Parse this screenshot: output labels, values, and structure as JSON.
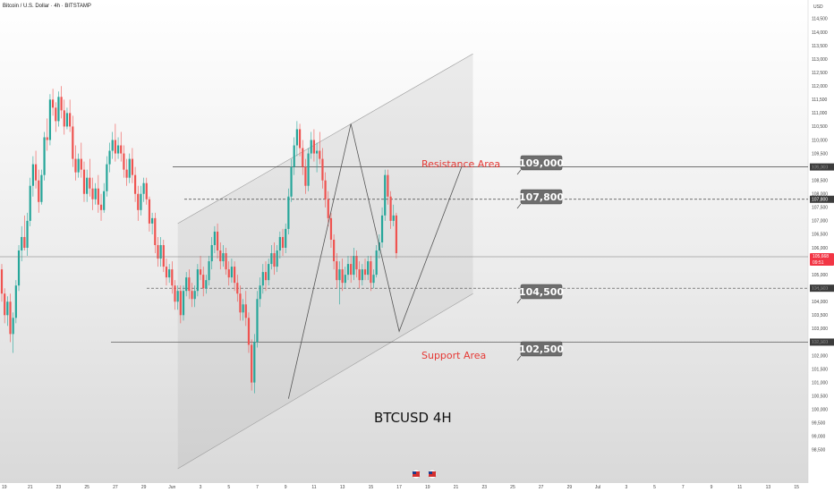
{
  "header": {
    "symbol_title": "Bitcoin / U.S. Dollar · 4h · BITSTAMP",
    "currency": "USD"
  },
  "colors": {
    "up": "#26a69a",
    "down": "#ef5350",
    "level_line": "#444444",
    "label_box": "#6d6d6d",
    "zone_text": "#e53935",
    "price_tag": "#f23645"
  },
  "overlay": {
    "watermark": "BTCUSD 4H",
    "resistance_text": "Resistance Area",
    "support_text": "Support Area"
  },
  "current_price": {
    "value": "105,668",
    "countdown": "09:51"
  },
  "chart_data": {
    "type": "candlestick",
    "y_range": [
      98000,
      114000
    ],
    "y_ticks": [
      "114,500",
      "114,000",
      "113,500",
      "113,000",
      "112,500",
      "112,000",
      "111,500",
      "111,000",
      "110,500",
      "110,000",
      "109,500",
      "109,000",
      "108,500",
      "108,000",
      "107,500",
      "107,000",
      "106,500",
      "106,000",
      "105,500",
      "105,000",
      "104,500",
      "104,000",
      "103,500",
      "103,000",
      "102,500",
      "102,000",
      "101,500",
      "101,000",
      "100,500",
      "100,000",
      "99,500",
      "99,000",
      "98,500"
    ],
    "x_ticks": [
      "19",
      "21",
      "23",
      "25",
      "27",
      "29",
      "Jun",
      "3",
      "5",
      "7",
      "9",
      "11",
      "13",
      "15",
      "17",
      "19",
      "21",
      "23",
      "25",
      "27",
      "29",
      "Jul",
      "3",
      "5",
      "7",
      "9",
      "11",
      "13",
      "15"
    ],
    "levels": [
      {
        "value": 109000,
        "label": "109,000",
        "axis_label": "109,000",
        "style": "solid"
      },
      {
        "value": 107800,
        "label": "107,800",
        "axis_label": "107,800",
        "style": "dashed"
      },
      {
        "value": 104500,
        "label": "104,500",
        "axis_label": "104,500",
        "style": "dashed"
      },
      {
        "value": 102500,
        "label": "102,500",
        "axis_label": "102,500",
        "style": "solid"
      }
    ],
    "channel": {
      "upper": [
        [
          6.2,
          106900
        ],
        [
          16.6,
          113200
        ]
      ],
      "lower": [
        [
          6.2,
          97800
        ],
        [
          16.6,
          104300
        ]
      ]
    },
    "pattern": [
      [
        10.1,
        100400
      ],
      [
        12.3,
        110600
      ],
      [
        14.0,
        102900
      ],
      [
        16.2,
        109000
      ]
    ],
    "candles": [
      [
        -0.5,
        104100,
        104600,
        103900,
        104400
      ],
      [
        -0.3,
        104400,
        104900,
        104200,
        104800
      ],
      [
        -0.2,
        104800,
        105600,
        104600,
        105400
      ],
      [
        -0.1,
        105400,
        105900,
        105000,
        105200
      ],
      [
        0.0,
        105200,
        105400,
        104000,
        104300
      ],
      [
        0.1,
        104300,
        104500,
        103200,
        103500
      ],
      [
        0.2,
        103500,
        104200,
        103100,
        104000
      ],
      [
        0.3,
        104000,
        104300,
        102500,
        102800
      ],
      [
        0.4,
        102800,
        103600,
        102100,
        103400
      ],
      [
        0.5,
        103400,
        104800,
        103200,
        104600
      ],
      [
        0.6,
        104600,
        106100,
        104400,
        105900
      ],
      [
        0.7,
        105900,
        106800,
        105500,
        106400
      ],
      [
        0.8,
        106400,
        107200,
        105900,
        106000
      ],
      [
        0.9,
        106000,
        107300,
        105700,
        107000
      ],
      [
        1.0,
        107000,
        108600,
        106800,
        108300
      ],
      [
        1.1,
        108300,
        109400,
        107900,
        109100
      ],
      [
        1.2,
        109100,
        109600,
        108200,
        108500
      ],
      [
        1.3,
        108500,
        108900,
        107300,
        107700
      ],
      [
        1.4,
        107700,
        108900,
        107600,
        108700
      ],
      [
        1.5,
        108700,
        110300,
        108500,
        110100
      ],
      [
        1.6,
        110100,
        110800,
        109600,
        110000
      ],
      [
        1.7,
        110000,
        111700,
        109800,
        111500
      ],
      [
        1.8,
        111500,
        111900,
        110900,
        111200
      ],
      [
        1.9,
        111200,
        111400,
        110300,
        110700
      ],
      [
        2.0,
        110700,
        111800,
        110500,
        111600
      ],
      [
        2.1,
        111600,
        112000,
        110800,
        111100
      ],
      [
        2.2,
        111100,
        111500,
        110200,
        110500
      ],
      [
        2.3,
        110500,
        111200,
        110400,
        111000
      ],
      [
        2.4,
        111000,
        111500,
        110300,
        110500
      ],
      [
        2.5,
        110500,
        110900,
        109000,
        109300
      ],
      [
        2.6,
        109300,
        109800,
        108500,
        108800
      ],
      [
        2.7,
        108800,
        109500,
        108600,
        109300
      ],
      [
        2.8,
        109300,
        109900,
        108600,
        108900
      ],
      [
        2.9,
        108900,
        109200,
        107700,
        108000
      ],
      [
        3.0,
        108000,
        108900,
        107700,
        108600
      ],
      [
        3.1,
        108600,
        109300,
        107900,
        108200
      ],
      [
        3.2,
        108200,
        108600,
        107400,
        107800
      ],
      [
        3.3,
        107800,
        108400,
        107600,
        108200
      ],
      [
        3.4,
        108200,
        108700,
        107300,
        107600
      ],
      [
        3.5,
        107600,
        108000,
        107000,
        107400
      ],
      [
        3.6,
        107400,
        108400,
        107300,
        108100
      ],
      [
        3.7,
        108100,
        109400,
        107900,
        109100
      ],
      [
        3.8,
        109100,
        109900,
        108800,
        109600
      ],
      [
        3.9,
        109600,
        110300,
        109300,
        110000
      ],
      [
        4.0,
        110000,
        110600,
        109200,
        109500
      ],
      [
        4.1,
        109500,
        110100,
        109300,
        109800
      ],
      [
        4.2,
        109800,
        110300,
        109200,
        109500
      ],
      [
        4.3,
        109500,
        109800,
        108600,
        108900
      ],
      [
        4.4,
        108900,
        109300,
        108300,
        108600
      ],
      [
        4.5,
        108600,
        109500,
        108400,
        109300
      ],
      [
        4.6,
        109300,
        109700,
        108400,
        108700
      ],
      [
        4.7,
        108700,
        109000,
        107700,
        108000
      ],
      [
        4.8,
        108000,
        108300,
        107000,
        107400
      ],
      [
        4.9,
        107400,
        108300,
        107200,
        108000
      ],
      [
        5.0,
        108000,
        108600,
        107700,
        108400
      ],
      [
        5.1,
        108400,
        108600,
        107600,
        107800
      ],
      [
        5.2,
        107800,
        107900,
        106600,
        106900
      ],
      [
        5.3,
        106900,
        107300,
        106500,
        107100
      ],
      [
        5.4,
        107100,
        107300,
        105800,
        106100
      ],
      [
        5.5,
        106100,
        106400,
        105300,
        105600
      ],
      [
        5.6,
        105600,
        106400,
        105300,
        106100
      ],
      [
        5.7,
        106100,
        106300,
        105100,
        105300
      ],
      [
        5.8,
        105300,
        105600,
        104600,
        104900
      ],
      [
        5.9,
        104900,
        105400,
        104700,
        105200
      ],
      [
        6.0,
        105200,
        105500,
        104300,
        104600
      ],
      [
        6.1,
        104600,
        104800,
        103700,
        104000
      ],
      [
        6.2,
        104000,
        104600,
        103700,
        104400
      ],
      [
        6.3,
        104400,
        104600,
        103200,
        103500
      ],
      [
        6.4,
        103500,
        104600,
        103300,
        104400
      ],
      [
        6.5,
        104400,
        105100,
        104200,
        104900
      ],
      [
        6.6,
        104900,
        105200,
        104100,
        104400
      ],
      [
        6.7,
        104400,
        104700,
        103800,
        104100
      ],
      [
        6.8,
        104100,
        104600,
        103800,
        104400
      ],
      [
        6.9,
        104400,
        105400,
        104200,
        105200
      ],
      [
        7.0,
        105200,
        105700,
        104800,
        105000
      ],
      [
        7.1,
        105000,
        105300,
        104200,
        104500
      ],
      [
        7.2,
        104500,
        105000,
        104300,
        104800
      ],
      [
        7.3,
        104800,
        105700,
        104600,
        105500
      ],
      [
        7.4,
        105500,
        106400,
        105200,
        106100
      ],
      [
        7.5,
        106100,
        106800,
        105800,
        106600
      ],
      [
        7.6,
        106600,
        106900,
        105600,
        105900
      ],
      [
        7.7,
        105900,
        106200,
        105200,
        105500
      ],
      [
        7.8,
        105500,
        106100,
        105300,
        105800
      ],
      [
        7.9,
        105800,
        106000,
        105000,
        105200
      ],
      [
        8.0,
        105200,
        105500,
        104600,
        104900
      ],
      [
        8.1,
        104900,
        105600,
        104700,
        105300
      ],
      [
        8.2,
        105300,
        105500,
        104400,
        104700
      ],
      [
        8.3,
        104700,
        105000,
        104000,
        104300
      ],
      [
        8.4,
        104300,
        104600,
        103300,
        103600
      ],
      [
        8.5,
        103600,
        104100,
        103300,
        103900
      ],
      [
        8.6,
        103900,
        104400,
        103100,
        103400
      ],
      [
        8.7,
        103400,
        103600,
        102100,
        102400
      ],
      [
        8.8,
        102400,
        102600,
        100700,
        101000
      ],
      [
        8.9,
        101000,
        102800,
        100600,
        102500
      ],
      [
        9.0,
        102500,
        104400,
        102300,
        104100
      ],
      [
        9.1,
        104100,
        104900,
        103800,
        104600
      ],
      [
        9.2,
        104600,
        105400,
        104300,
        105100
      ],
      [
        9.3,
        105100,
        105500,
        104400,
        104800
      ],
      [
        9.4,
        104800,
        105600,
        104600,
        105400
      ],
      [
        9.5,
        105400,
        106100,
        105200,
        105800
      ],
      [
        9.6,
        105800,
        106200,
        105000,
        105300
      ],
      [
        9.7,
        105300,
        106100,
        105100,
        105900
      ],
      [
        9.8,
        105900,
        106600,
        105600,
        106400
      ],
      [
        9.9,
        106400,
        106700,
        105700,
        106000
      ],
      [
        10.0,
        106000,
        106900,
        105800,
        106700
      ],
      [
        10.1,
        106700,
        108200,
        106500,
        107900
      ],
      [
        10.2,
        107900,
        109300,
        107700,
        109000
      ],
      [
        10.3,
        109000,
        110100,
        108700,
        109800
      ],
      [
        10.4,
        109800,
        110700,
        109400,
        110400
      ],
      [
        10.5,
        110400,
        110600,
        109400,
        109700
      ],
      [
        10.6,
        109700,
        110000,
        108700,
        109000
      ],
      [
        10.7,
        109000,
        109300,
        108000,
        108300
      ],
      [
        10.8,
        108300,
        109700,
        108100,
        109500
      ],
      [
        10.9,
        109500,
        110300,
        109300,
        110000
      ],
      [
        11.0,
        110000,
        110400,
        109200,
        109500
      ],
      [
        11.1,
        109500,
        109900,
        108800,
        109600
      ],
      [
        11.2,
        109600,
        110300,
        109100,
        109300
      ],
      [
        11.3,
        109300,
        109700,
        108200,
        108500
      ],
      [
        11.4,
        108500,
        108800,
        107500,
        107800
      ],
      [
        11.5,
        107800,
        108100,
        106800,
        107100
      ],
      [
        11.6,
        107100,
        107300,
        106000,
        106300
      ],
      [
        11.7,
        106300,
        106500,
        105200,
        105500
      ],
      [
        11.8,
        105500,
        105800,
        104500,
        104800
      ],
      [
        11.9,
        104800,
        105500,
        103900,
        105200
      ],
      [
        12.0,
        105200,
        105600,
        104400,
        104700
      ],
      [
        12.1,
        104700,
        105300,
        104500,
        105000
      ],
      [
        12.2,
        105000,
        105700,
        104800,
        105400
      ],
      [
        12.3,
        105400,
        105700,
        104700,
        105000
      ],
      [
        12.4,
        105000,
        106000,
        104800,
        105700
      ],
      [
        12.5,
        105700,
        105900,
        104900,
        105200
      ],
      [
        12.6,
        105200,
        105500,
        104500,
        104800
      ],
      [
        12.7,
        104800,
        105400,
        104600,
        105200
      ],
      [
        12.8,
        105200,
        105600,
        104800,
        105000
      ],
      [
        12.9,
        105000,
        105700,
        104800,
        105500
      ],
      [
        13.0,
        105500,
        105700,
        104400,
        104700
      ],
      [
        13.1,
        104700,
        105200,
        104500,
        105000
      ],
      [
        13.2,
        105000,
        106100,
        104900,
        105900
      ],
      [
        13.3,
        105900,
        106500,
        105600,
        106200
      ],
      [
        13.4,
        106200,
        107500,
        106000,
        107200
      ],
      [
        13.5,
        107200,
        108900,
        107000,
        108700
      ],
      [
        13.6,
        108700,
        108900,
        107600,
        107900
      ],
      [
        13.7,
        107900,
        108100,
        106700,
        107000
      ],
      [
        13.8,
        107000,
        107600,
        106800,
        107200
      ],
      [
        13.9,
        107200,
        107300,
        105600,
        105800
      ]
    ]
  },
  "events": {
    "icons": [
      "flag-icon",
      "flag-icon"
    ]
  }
}
